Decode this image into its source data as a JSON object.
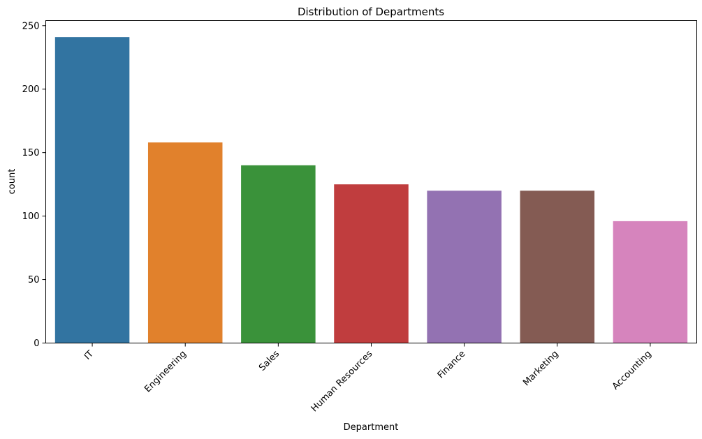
{
  "chart_data": {
    "type": "bar",
    "title": "Distribution of Departments",
    "xlabel": "Department",
    "ylabel": "count",
    "categories": [
      "IT",
      "Engineering",
      "Sales",
      "Human Resources",
      "Finance",
      "Marketing",
      "Accounting"
    ],
    "values": [
      241,
      158,
      140,
      125,
      120,
      120,
      96
    ],
    "colors": [
      "#3274a1",
      "#e1812c",
      "#3a923a",
      "#c03d3e",
      "#9372b2",
      "#845b53",
      "#d684bd"
    ],
    "ylim": [
      0,
      254
    ],
    "yticks": [
      0,
      50,
      100,
      150,
      200,
      250
    ],
    "grid": false,
    "legend": "none"
  }
}
